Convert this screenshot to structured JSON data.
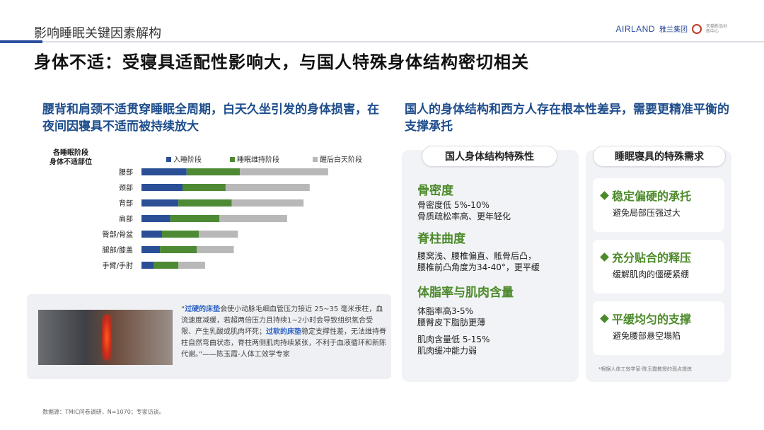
{
  "header": {
    "section_title": "影响睡眠关键因素解构",
    "brand_en": "AIRLAND",
    "brand_cn": "雅兰集团",
    "brand_sub": "天猫新品创新中心"
  },
  "headline": "身体不适：受寝具适配性影响大，与国人特殊身体结构密切相关",
  "left_heading": "腰背和肩颈不适贯穿睡眠全周期，白天久坐引发的身体损害，在夜间因寝具不适而被持续放大",
  "right_heading": "国人的身体结构和西方人存在根本性差异，需要更精准平衡的支撑承托",
  "chart_data": {
    "type": "bar",
    "orientation": "horizontal",
    "stacked": true,
    "axis_title_lines": [
      "各睡眠阶段",
      "身体不适部位"
    ],
    "categories": [
      "腰部",
      "颈部",
      "背部",
      "肩部",
      "臀部/骨盆",
      "腿部/膝盖",
      "手臂/手肘"
    ],
    "series": [
      {
        "name": "入睡阶段",
        "color": "#2a4f96",
        "values": [
          22,
          20,
          18,
          14,
          10,
          9,
          6
        ]
      },
      {
        "name": "睡眠维持阶段",
        "color": "#4e8a34",
        "values": [
          26,
          21,
          26,
          24,
          18,
          18,
          12
        ]
      },
      {
        "name": "醒后白天阶段",
        "color": "#b8b8b8",
        "values": [
          43,
          41,
          35,
          33,
          19,
          18,
          13
        ]
      }
    ],
    "legend_position": "top",
    "xlim": [
      0,
      100
    ],
    "grid": false
  },
  "quote": {
    "open": "“",
    "hl1": "过硬的床垫",
    "text1": "会使小动脉毛细血管压力接近 25~35 毫米汞柱，血流速度减缓，若超两倍压力且持续1~2小时会导致组织氧合受限、产生乳酸或肌肉坏死；",
    "hl2": "过软的床垫",
    "text2": "稳定支撑性差，无法维持脊柱自然弯曲状态，脊柱两侧肌肉持续紧张，不利于血液循环和新陈代谢。”——陈玉霞-人体工效学专家"
  },
  "card_a": {
    "title": "国人身体结构特殊性",
    "features": [
      {
        "title": "骨密度",
        "lines": [
          "骨密度低 5%-10%",
          "骨质疏松率高、更年轻化"
        ]
      },
      {
        "title": "脊柱曲度",
        "lines": [
          "腰窝浅、腰椎偏直、骶骨后凸，",
          "腰椎前凸角度为34-40°，更平缓"
        ]
      },
      {
        "title": "体脂率与肌肉含量",
        "lines": [
          "体脂率高3-5%",
          "腰臀皮下脂肪更薄",
          "",
          "肌肉含量低 5-15%",
          "肌肉缓冲能力弱"
        ]
      }
    ]
  },
  "card_b": {
    "title": "睡眠寝具的特殊需求",
    "needs": [
      {
        "title": "稳定偏硬的承托",
        "desc": "避免局部压强过大"
      },
      {
        "title": "充分贴合的释压",
        "desc": "缓解肌肉的僵硬紧绷"
      },
      {
        "title": "平缓均匀的支撑",
        "desc": "避免腰部悬空塌陷"
      }
    ],
    "footnote": "*根据人体工效学家-陈玉霞教授的观点提炼"
  },
  "source": "数据源：TMIC问卷调研，N=1070；专家访谈。"
}
